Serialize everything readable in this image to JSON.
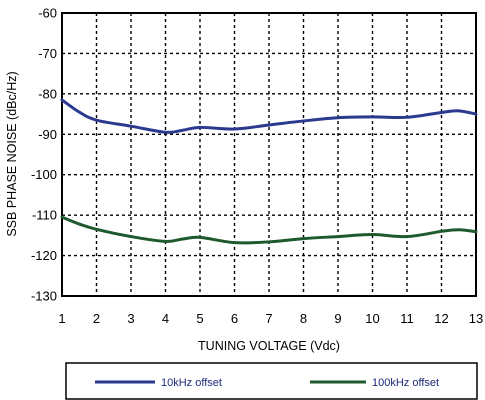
{
  "chart_data": {
    "type": "line",
    "xlabel": "TUNING VOLTAGE (Vdc)",
    "ylabel": "SSB PHASE NOISE (dBc/Hz)",
    "xlim": [
      1,
      13
    ],
    "ylim": [
      -130,
      -60
    ],
    "x_ticks": [
      1,
      2,
      3,
      4,
      5,
      6,
      7,
      8,
      9,
      10,
      11,
      12,
      13
    ],
    "y_ticks": [
      -60,
      -70,
      -80,
      -90,
      -100,
      -110,
      -120,
      -130
    ],
    "grid": true,
    "legend_position": "bottom",
    "series": [
      {
        "name": "10kHz offset",
        "color": "#2b3a8f",
        "x": [
          1,
          1.5,
          2,
          3,
          4,
          4.5,
          5,
          6,
          7,
          8,
          9,
          10,
          11,
          12,
          12.5,
          13
        ],
        "y": [
          -81.5,
          -84.5,
          -86.5,
          -88,
          -89.5,
          -89,
          -88.3,
          -88.7,
          -87.7,
          -86.7,
          -85.9,
          -85.7,
          -85.8,
          -84.6,
          -84.2,
          -85
        ]
      },
      {
        "name": "100kHz offset",
        "color": "#1f5a2e",
        "x": [
          1,
          1.5,
          2,
          3,
          4,
          4.5,
          5,
          6,
          7,
          8,
          9,
          10,
          11,
          12,
          12.5,
          13
        ],
        "y": [
          -110.5,
          -112.2,
          -113.5,
          -115.3,
          -116.5,
          -115.9,
          -115.5,
          -116.8,
          -116.6,
          -115.8,
          -115.3,
          -114.8,
          -115.3,
          -114,
          -113.6,
          -114.1
        ]
      }
    ]
  }
}
